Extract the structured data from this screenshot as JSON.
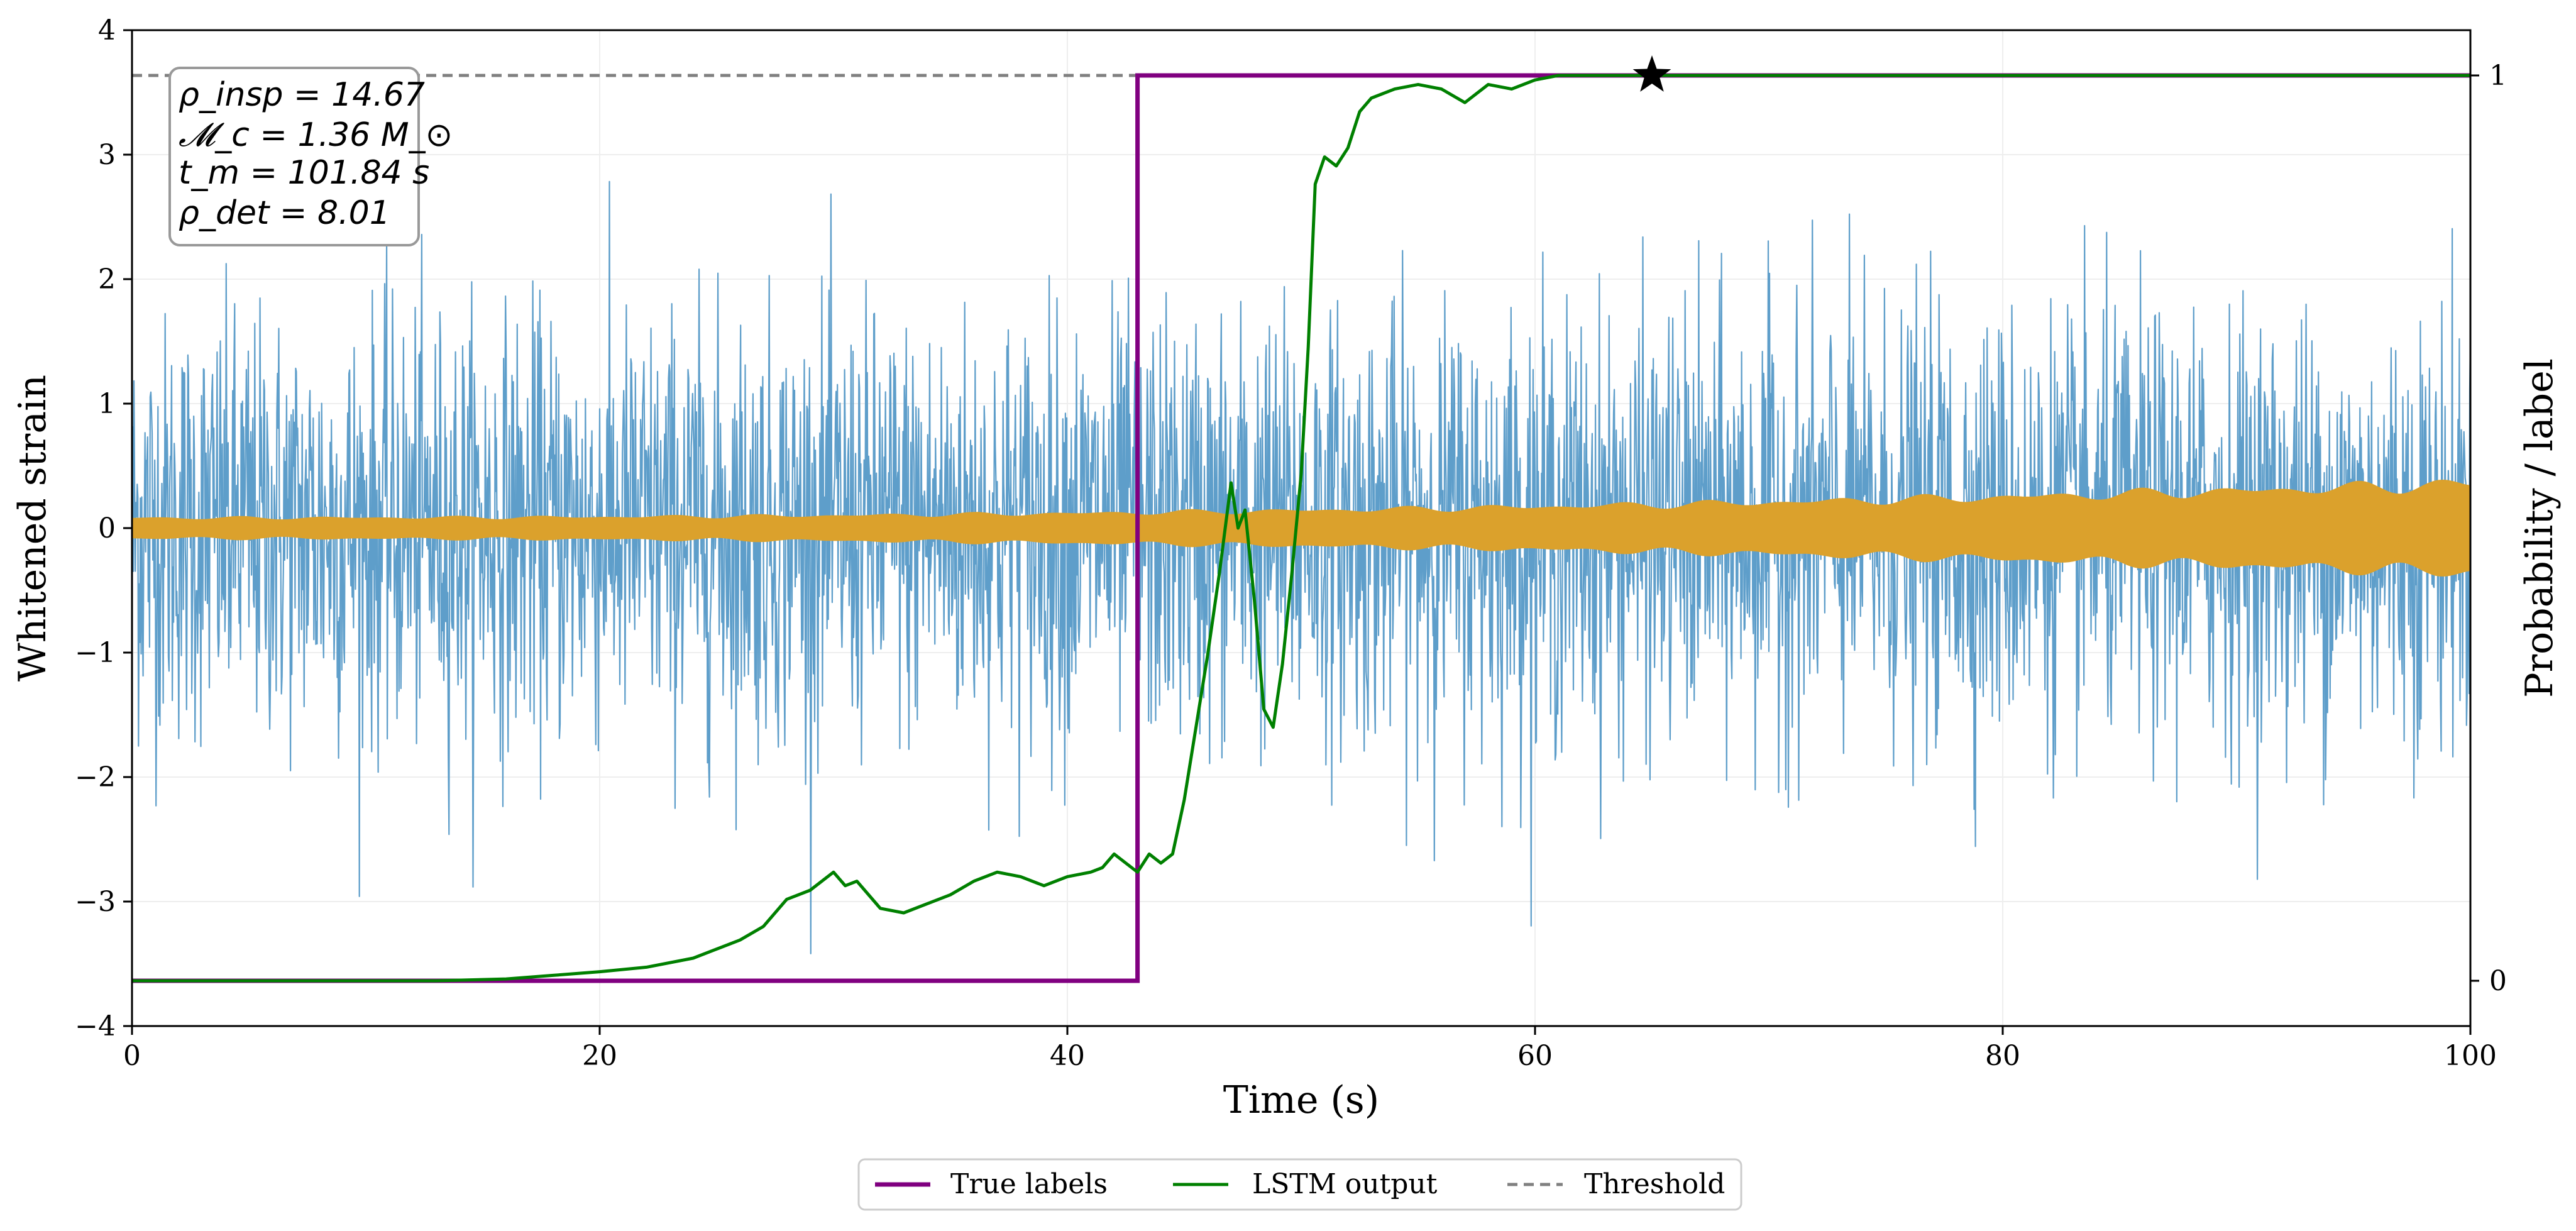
{
  "chart_data": {
    "type": "line",
    "xlabel": "Time (s)",
    "ylabel_left": "Whitened strain",
    "ylabel_right": "Probability / label",
    "xlim": [
      0,
      100
    ],
    "ylim_left": [
      -4,
      4
    ],
    "ylim_right": [
      -0.05,
      1.05
    ],
    "x_ticks": [
      0,
      20,
      40,
      60,
      80,
      100
    ],
    "y_ticks_left": [
      4,
      3,
      2,
      1,
      0,
      -1,
      -2,
      -3,
      -4
    ],
    "y_ticks_left_labels": [
      "4",
      "3",
      "2",
      "1",
      "0",
      "−1",
      "−2",
      "−3",
      "−4"
    ],
    "y_ticks_right": [
      1,
      0
    ],
    "y_ticks_right_labels": [
      "1",
      "0"
    ],
    "grid": true,
    "annotation": {
      "rho_insp": "ρ_insp = 14.67",
      "chirp_mass": "𝓜_c = 1.36 M_⊙",
      "t_merge": "t_m = 101.84 s",
      "rho_det": "ρ_det = 8.01"
    },
    "series": [
      {
        "name": "Whitened strain (noise)",
        "axis": "left",
        "color": "#5599c7",
        "style": "noise",
        "approx_std": 0.85,
        "envelope_peak": 2.6
      },
      {
        "name": "Injected signal",
        "axis": "left",
        "color": "#dba12c",
        "style": "chirp",
        "amplitude_start": 0.08,
        "amplitude_end": 0.35
      },
      {
        "name": "True labels",
        "axis": "right",
        "color": "#800080",
        "x": [
          0,
          43,
          43,
          100
        ],
        "values": [
          0,
          0,
          1,
          1
        ]
      },
      {
        "name": "LSTM output",
        "axis": "right",
        "color": "#008000",
        "x": [
          0,
          13,
          16,
          18,
          20,
          22,
          24,
          25,
          26,
          27,
          28,
          29,
          30,
          30.5,
          31,
          32,
          33,
          34,
          35,
          36,
          37,
          38,
          39,
          40,
          41,
          41.5,
          42,
          42.5,
          43,
          43.5,
          44,
          44.5,
          45,
          45.5,
          46,
          46.5,
          47,
          47.3,
          47.6,
          48,
          48.4,
          48.8,
          49.2,
          49.6,
          50,
          50.3,
          50.6,
          51,
          51.5,
          52,
          52.5,
          53,
          54,
          55,
          56,
          57,
          58,
          59,
          60,
          61,
          62,
          63,
          64,
          65,
          100
        ],
        "values": [
          0,
          0,
          0.002,
          0.006,
          0.01,
          0.015,
          0.025,
          0.035,
          0.045,
          0.06,
          0.09,
          0.1,
          0.12,
          0.105,
          0.11,
          0.08,
          0.075,
          0.085,
          0.095,
          0.11,
          0.12,
          0.115,
          0.105,
          0.115,
          0.12,
          0.125,
          0.14,
          0.13,
          0.12,
          0.14,
          0.13,
          0.14,
          0.2,
          0.28,
          0.36,
          0.45,
          0.55,
          0.5,
          0.52,
          0.42,
          0.3,
          0.28,
          0.35,
          0.45,
          0.56,
          0.7,
          0.88,
          0.91,
          0.9,
          0.92,
          0.96,
          0.975,
          0.985,
          0.99,
          0.985,
          0.97,
          0.99,
          0.985,
          0.995,
          1.0,
          1.0,
          1.0,
          1.0,
          1.0,
          1.0
        ]
      },
      {
        "name": "Threshold",
        "axis": "right",
        "color": "#808080",
        "style": "dashed",
        "values": [
          1.0
        ]
      },
      {
        "name": "Trigger",
        "axis": "right",
        "marker": "star",
        "color": "#000000",
        "x": [
          65
        ],
        "values": [
          1.0
        ]
      }
    ],
    "legend": {
      "placement": "bottom-center",
      "entries": [
        "True labels",
        "LSTM output",
        "Threshold"
      ]
    }
  }
}
